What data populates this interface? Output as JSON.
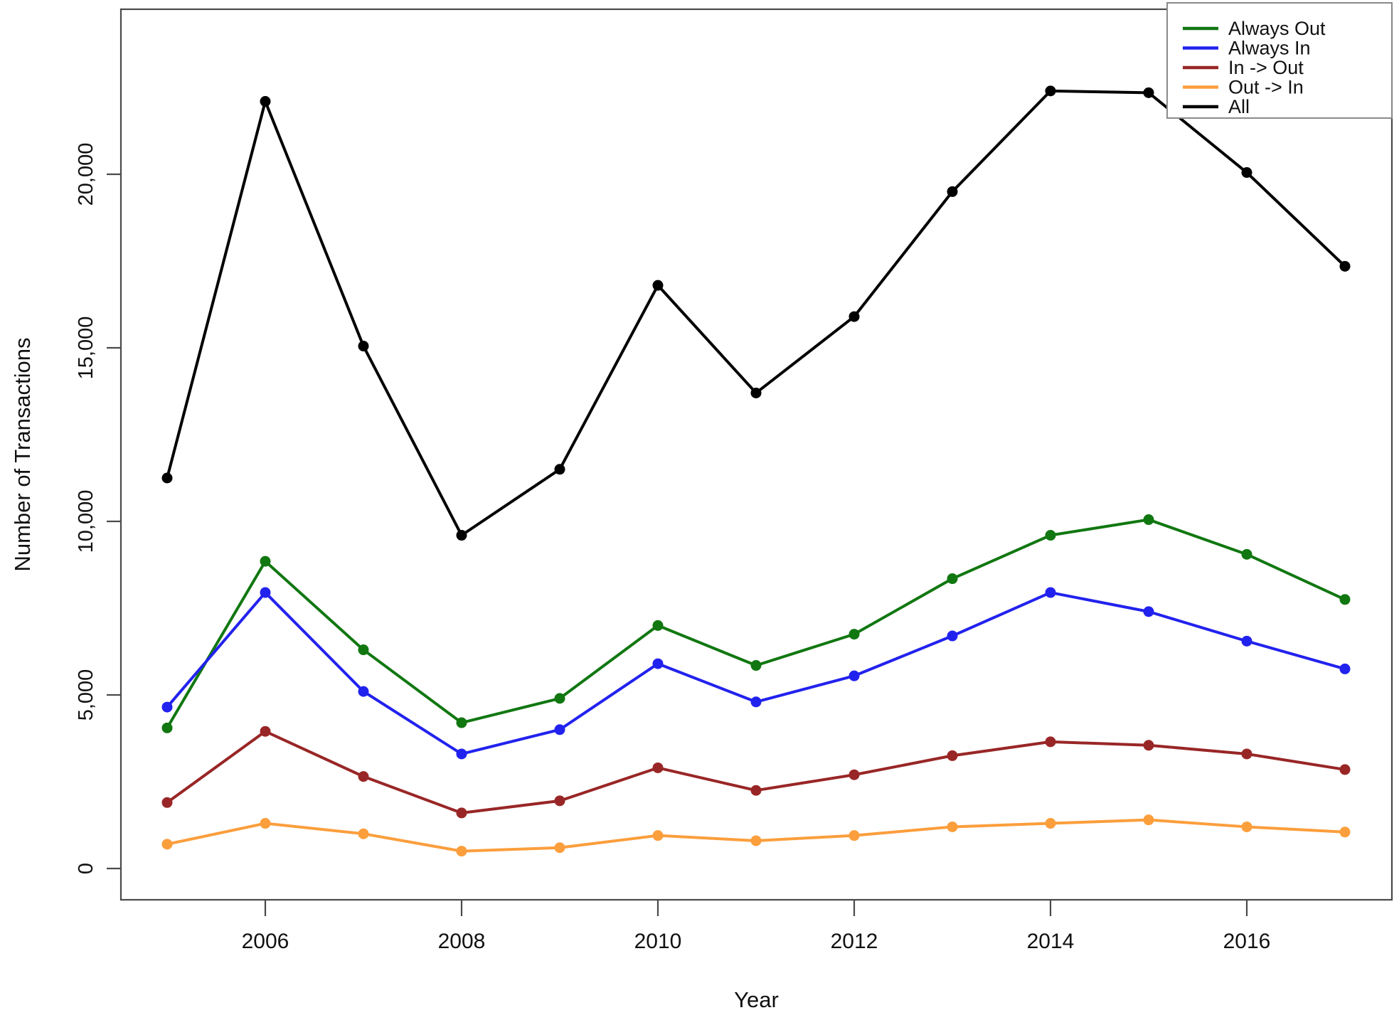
{
  "figure": {
    "background": "#ffffff",
    "axis_color": "#4a4a4a",
    "box_color": "#4a4a4a",
    "text_color": "#111111",
    "legend_border_color": "#8a8a8a"
  },
  "chart_data": {
    "type": "line",
    "title": "",
    "xlabel": "Year",
    "ylabel": "Number of Transactions",
    "x": [
      2005,
      2006,
      2007,
      2008,
      2009,
      2010,
      2011,
      2012,
      2013,
      2014,
      2015,
      2016,
      2017
    ],
    "x_ticks": [
      2006,
      2008,
      2010,
      2012,
      2014,
      2016
    ],
    "x_tick_labels": [
      "2006",
      "2008",
      "2010",
      "2012",
      "2014",
      "2016"
    ],
    "y_ticks": [
      0,
      5000,
      10000,
      15000,
      20000
    ],
    "y_tick_labels": [
      "0",
      "5,000",
      "10,000",
      "15,000",
      "20,000"
    ],
    "xlim": [
      2004.5,
      2017.5
    ],
    "ylim": [
      0,
      24500
    ],
    "grid": false,
    "legend_position": "top-right",
    "marker": "filled-circle",
    "series": [
      {
        "name": "Always Out",
        "color": "#117711",
        "values": [
          4050,
          8850,
          6300,
          4200,
          4900,
          7000,
          5850,
          6750,
          8350,
          9600,
          10050,
          9050,
          7750
        ]
      },
      {
        "name": "Always In",
        "color": "#2222ee",
        "values": [
          4650,
          7950,
          5100,
          3300,
          4000,
          5900,
          4800,
          5550,
          6700,
          7950,
          7400,
          6550,
          5750
        ]
      },
      {
        "name": "In -> Out",
        "color": "#992626",
        "values": [
          1900,
          3950,
          2650,
          1600,
          1950,
          2900,
          2250,
          2700,
          3250,
          3650,
          3550,
          3300,
          2850
        ]
      },
      {
        "name": "Out -> In",
        "color": "#fb9e3c",
        "values": [
          700,
          1300,
          1000,
          500,
          600,
          950,
          800,
          950,
          1200,
          1300,
          1400,
          1200,
          1050
        ]
      },
      {
        "name": "All",
        "color": "#000000",
        "values": [
          11250,
          22100,
          15050,
          9600,
          11500,
          16800,
          13700,
          15900,
          19500,
          22400,
          22350,
          20050,
          17350
        ]
      }
    ]
  }
}
